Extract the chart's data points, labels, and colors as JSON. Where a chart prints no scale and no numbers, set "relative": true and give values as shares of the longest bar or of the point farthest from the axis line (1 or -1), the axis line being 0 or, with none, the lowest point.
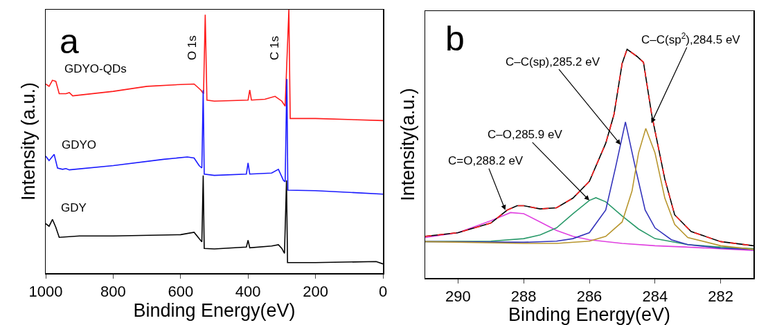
{
  "chart_data": [
    {
      "type": "line",
      "relative": true,
      "xlabel": "Binding Energy(eV)",
      "ylabel": "Intensity (a.u.)",
      "xlim": [
        1000,
        0
      ],
      "xticks": [
        1000,
        800,
        600,
        400,
        200,
        0
      ],
      "grid": false,
      "annotations": [
        "a",
        "O 1s",
        "C 1s"
      ],
      "series": [
        {
          "name": "GDYO-QDs",
          "color": "#ff1a1a",
          "x": [
            1000,
            990,
            980,
            970,
            960,
            940,
            930,
            920,
            800,
            700,
            600,
            560,
            540,
            532,
            527,
            522,
            500,
            400,
            395,
            390,
            350,
            320,
            300,
            290,
            279,
            275,
            200,
            0
          ],
          "values": [
            0.718,
            0.709,
            0.732,
            0.728,
            0.681,
            0.681,
            0.685,
            0.673,
            0.69,
            0.709,
            0.716,
            0.718,
            0.695,
            0.681,
            0.981,
            0.657,
            0.653,
            0.657,
            0.695,
            0.657,
            0.66,
            0.671,
            0.653,
            0.634,
            1,
            0.587,
            0.587,
            0.579
          ]
        },
        {
          "name": "GDYO",
          "color": "#1a1aff",
          "x": [
            1000,
            990,
            975,
            965,
            950,
            940,
            930,
            800,
            650,
            580,
            560,
            545,
            537,
            533,
            530,
            500,
            405,
            400,
            395,
            330,
            310,
            295,
            290,
            285,
            282,
            200,
            0
          ],
          "values": [
            0.444,
            0.427,
            0.451,
            0.399,
            0.394,
            0.397,
            0.392,
            0.408,
            0.432,
            0.441,
            0.437,
            0.408,
            0.399,
            0.695,
            0.376,
            0.371,
            0.376,
            0.418,
            0.376,
            0.38,
            0.394,
            0.352,
            0.347,
            0.737,
            0.315,
            0.313,
            0.3
          ]
        },
        {
          "name": "GDY",
          "color": "#000000",
          "x": [
            1000,
            990,
            980,
            970,
            960,
            900,
            800,
            600,
            560,
            545,
            537,
            533,
            530,
            500,
            405,
            400,
            395,
            330,
            310,
            300,
            292,
            286,
            283,
            200,
            20,
            0
          ],
          "values": [
            0.188,
            0.178,
            0.204,
            0.174,
            0.136,
            0.141,
            0.141,
            0.146,
            0.155,
            0.131,
            0.119,
            0.371,
            0.094,
            0.092,
            0.099,
            0.125,
            0.096,
            0.103,
            0.108,
            0.094,
            0.075,
            0.352,
            0.04,
            0.04,
            0.044,
            0.035
          ]
        }
      ]
    },
    {
      "type": "line",
      "relative": true,
      "xlabel": "Binding Energy(eV)",
      "ylabel": "Intensity(a.u.)",
      "xlim": [
        291,
        281
      ],
      "xticks": [
        290,
        288,
        286,
        284,
        282
      ],
      "grid": false,
      "annotations": [
        "b",
        {
          "text": "C=O,288.2 eV",
          "x": 288.56,
          "y": 0.297
        },
        {
          "text": "C–O,285.9 eV",
          "x": 286,
          "y": 0.339
        },
        {
          "text": "C–C(sp),285.2 eV",
          "x": 285.05,
          "y": 0.583
        },
        {
          "text": "C–C(sp$^{2}$),284.5 eV",
          "x": 284.11,
          "y": 0.677
        }
      ],
      "series": [
        {
          "color": "#e040e0",
          "x": [
            291,
            290,
            289,
            288.4,
            288,
            287.5,
            287,
            286.5,
            286,
            285,
            284,
            283,
            281
          ],
          "values": [
            0.177,
            0.198,
            0.25,
            0.286,
            0.281,
            0.245,
            0.208,
            0.182,
            0.167,
            0.151,
            0.141,
            0.135,
            0.12
          ]
        },
        {
          "color": "#2a9a6a",
          "x": [
            291,
            289,
            288,
            287.5,
            287,
            286.5,
            286,
            285.8,
            285.5,
            285,
            284.5,
            284,
            283,
            282,
            281
          ],
          "values": [
            0.159,
            0.161,
            0.172,
            0.188,
            0.219,
            0.281,
            0.339,
            0.351,
            0.333,
            0.271,
            0.214,
            0.172,
            0.146,
            0.135,
            0.128
          ]
        },
        {
          "color": "#3333bb",
          "x": [
            291,
            288,
            287,
            286.5,
            286,
            285.5,
            285.2,
            284.9,
            284.6,
            284.3,
            284,
            283.5,
            283,
            282,
            281
          ],
          "values": [
            0.159,
            0.156,
            0.161,
            0.172,
            0.198,
            0.297,
            0.484,
            0.682,
            0.484,
            0.297,
            0.219,
            0.167,
            0.146,
            0.13,
            0.125
          ]
        },
        {
          "color": "#b8962e",
          "x": [
            291,
            288,
            287,
            286,
            285.5,
            285,
            284.7,
            284.5,
            284.28,
            284,
            283.7,
            283.4,
            283,
            282,
            281
          ],
          "values": [
            0.159,
            0.151,
            0.151,
            0.161,
            0.182,
            0.245,
            0.38,
            0.547,
            0.654,
            0.547,
            0.349,
            0.234,
            0.177,
            0.141,
            0.125
          ]
        },
        {
          "color": "#000000",
          "x": [
            291,
            290,
            289,
            288.5,
            288.2,
            288,
            287.5,
            287,
            286.5,
            286,
            285.5,
            285.25,
            285,
            284.85,
            284.55,
            284.35,
            284.1,
            283.7,
            283.4,
            282.9,
            282,
            281
          ],
          "values": [
            0.182,
            0.198,
            0.24,
            0.297,
            0.316,
            0.316,
            0.302,
            0.307,
            0.349,
            0.422,
            0.589,
            0.714,
            0.938,
            1,
            0.969,
            0.943,
            0.714,
            0.432,
            0.276,
            0.203,
            0.159,
            0.141
          ]
        },
        {
          "color": "#ff2020",
          "line_style": "dashed",
          "x": [
            291,
            290,
            289,
            288.5,
            288.2,
            288,
            287.5,
            287,
            286.5,
            286,
            285.5,
            285.25,
            285,
            284.85,
            284.55,
            284.35,
            284.1,
            283.7,
            283.4,
            282.9,
            282,
            281
          ],
          "values": [
            0.182,
            0.198,
            0.24,
            0.297,
            0.316,
            0.316,
            0.302,
            0.307,
            0.349,
            0.422,
            0.589,
            0.714,
            0.938,
            1,
            0.969,
            0.943,
            0.714,
            0.432,
            0.276,
            0.203,
            0.159,
            0.141
          ]
        }
      ]
    }
  ]
}
